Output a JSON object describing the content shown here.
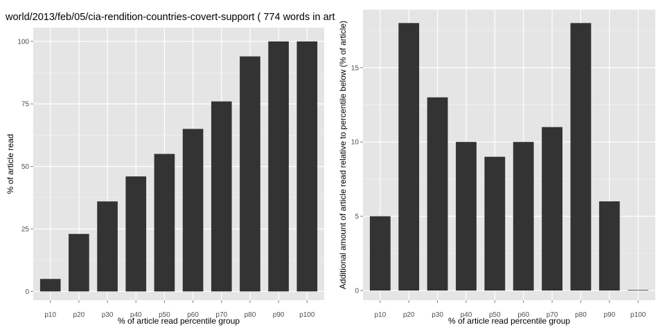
{
  "figure": {
    "title": "world/2013/feb/05/cia-rendition-countries-covert-support ( 774 words in art"
  },
  "colors": {
    "panel_background": "#e5e5e5",
    "grid_major": "#ffffff",
    "grid_minor": "#f2f2f2",
    "bar_fill": "#333333",
    "tick_text": "#4d4d4d"
  },
  "chart_data": [
    {
      "type": "bar",
      "title": "",
      "xlabel": "% of article read percentile group",
      "ylabel": "% of article read",
      "categories": [
        "p10",
        "p20",
        "p30",
        "p40",
        "p50",
        "p60",
        "p70",
        "p80",
        "p90",
        "p100"
      ],
      "values": [
        5,
        23,
        36,
        46,
        55,
        65,
        76,
        94,
        100,
        100
      ],
      "ylim": [
        -3.5,
        105.5
      ],
      "yticks": [
        0,
        25,
        50,
        75,
        100
      ],
      "grid": true,
      "legend": "none"
    },
    {
      "type": "bar",
      "title": "",
      "xlabel": "% of article read percentile group",
      "ylabel": "Additional amount of article read relative to percentile below (% of article)",
      "categories": [
        "p10",
        "p20",
        "p30",
        "p40",
        "p50",
        "p60",
        "p70",
        "p80",
        "p90",
        "p100"
      ],
      "values": [
        5,
        18,
        13,
        10,
        9,
        10,
        11,
        18,
        6,
        0
      ],
      "ylim": [
        -0.65,
        18.9
      ],
      "yticks": [
        0,
        5,
        10,
        15
      ],
      "grid": true,
      "legend": "none"
    }
  ]
}
